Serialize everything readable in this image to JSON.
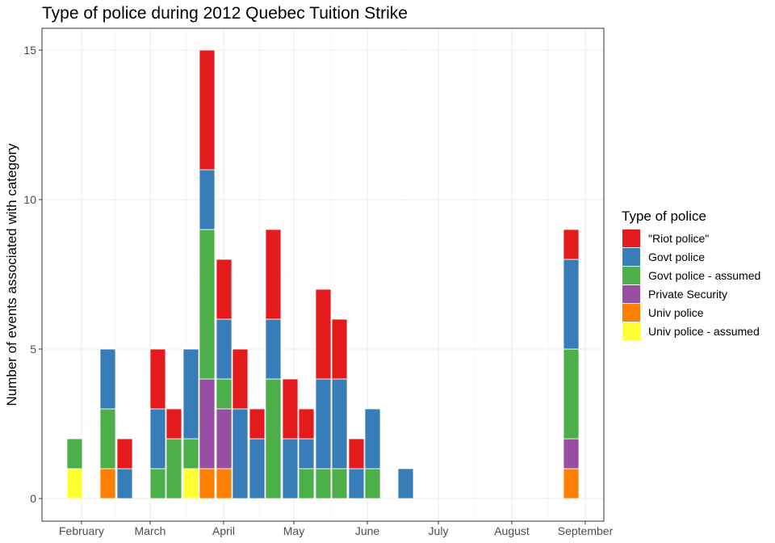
{
  "chart_data": {
    "type": "bar",
    "stacked": true,
    "title": "Type of police during 2012 Quebec Tuition Strike",
    "xlabel": "",
    "ylabel": "Number of events associated with category",
    "ylim": [
      0,
      15.7
    ],
    "y_ticks": [
      0,
      5,
      10,
      15
    ],
    "x_ticks": [
      "February",
      "March",
      "April",
      "May",
      "June",
      "July",
      "August",
      "September"
    ],
    "grid": true,
    "legend": {
      "title": "Type of police",
      "placement": "right",
      "entries": [
        "\"Riot police\"",
        "Govt police",
        "Govt police - assumed",
        "Private Security",
        "Univ police",
        "Univ police - assumed"
      ]
    },
    "colors": {
      "\"Riot police\"": "#E41A1C",
      "Govt police": "#377EB8",
      "Govt police - assumed": "#4DAF4A",
      "Private Security": "#984EA3",
      "Univ police": "#FF7F00",
      "Univ police - assumed": "#FFFF33"
    },
    "bars": [
      {
        "segments": {
          "Univ police - assumed": 1,
          "Govt police - assumed": 1
        }
      },
      {
        "segments": {
          "Univ police": 1,
          "Govt police - assumed": 2,
          "Govt police": 2
        }
      },
      {
        "segments": {
          "Govt police": 1,
          "\"Riot police\"": 1
        }
      },
      {
        "segments": {
          "Govt police - assumed": 1,
          "Govt police": 2,
          "\"Riot police\"": 2
        }
      },
      {
        "segments": {
          "Govt police - assumed": 2,
          "\"Riot police\"": 1
        }
      },
      {
        "segments": {
          "Univ police - assumed": 1,
          "Govt police - assumed": 1,
          "Govt police": 3
        }
      },
      {
        "segments": {
          "Univ police": 1,
          "Private Security": 3,
          "Govt police - assumed": 5,
          "Govt police": 2,
          "\"Riot police\"": 4
        }
      },
      {
        "segments": {
          "Univ police": 1,
          "Private Security": 2,
          "Govt police - assumed": 1,
          "Govt police": 2,
          "\"Riot police\"": 2
        }
      },
      {
        "segments": {
          "Govt police": 3,
          "\"Riot police\"": 2
        }
      },
      {
        "segments": {
          "Govt police": 2,
          "\"Riot police\"": 1
        }
      },
      {
        "segments": {
          "Govt police - assumed": 4,
          "Govt police": 2,
          "\"Riot police\"": 3
        }
      },
      {
        "segments": {
          "Govt police": 2,
          "\"Riot police\"": 2
        }
      },
      {
        "segments": {
          "Govt police - assumed": 1,
          "Govt police": 1,
          "\"Riot police\"": 1
        }
      },
      {
        "segments": {
          "Govt police - assumed": 1,
          "Govt police": 3,
          "\"Riot police\"": 3
        }
      },
      {
        "segments": {
          "Govt police - assumed": 1,
          "Govt police": 3,
          "\"Riot police\"": 2
        }
      },
      {
        "segments": {
          "Govt police": 1,
          "\"Riot police\"": 1
        }
      },
      {
        "segments": {
          "Govt police - assumed": 1,
          "Govt police": 2
        }
      },
      {
        "segments": {
          "Govt police": 1
        }
      },
      {
        "segments": {
          "Univ police": 1,
          "Private Security": 1,
          "Govt police - assumed": 3,
          "Govt police": 3,
          "\"Riot police\"": 1
        }
      }
    ]
  }
}
